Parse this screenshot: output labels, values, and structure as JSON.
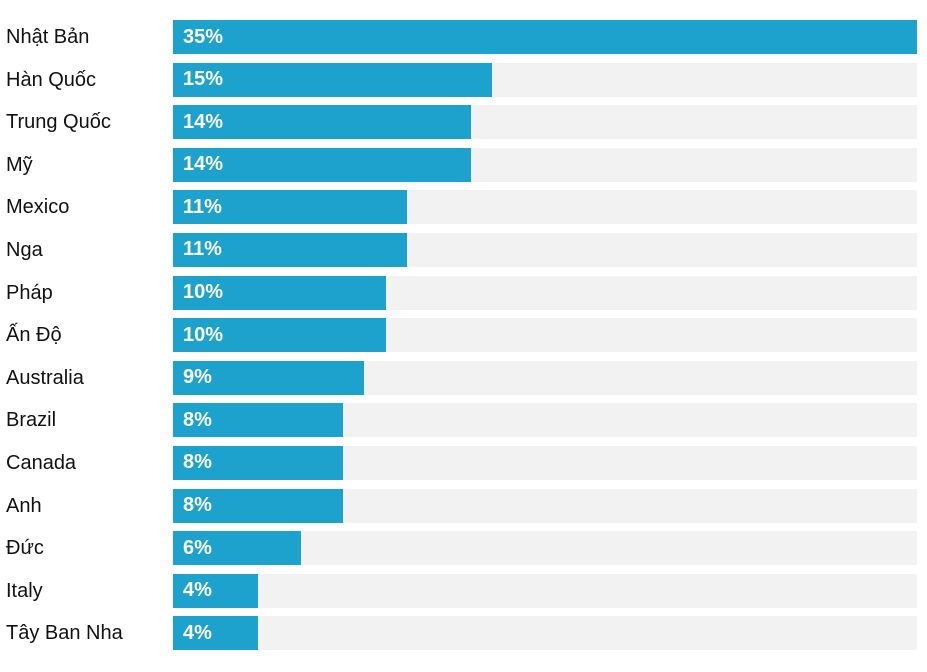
{
  "chart_data": {
    "type": "bar",
    "orientation": "horizontal",
    "title": "",
    "xlabel": "",
    "ylabel": "",
    "xlim": [
      0,
      35
    ],
    "grid": false,
    "legend": false,
    "categories": [
      "Nhật Bản",
      "Hàn Quốc",
      "Trung Quốc",
      "Mỹ",
      "Mexico",
      "Nga",
      "Pháp",
      "Ấn Độ",
      "Australia",
      "Brazil",
      "Canada",
      "Anh",
      "Đức",
      "Italy",
      "Tây Ban Nha"
    ],
    "values": [
      35,
      15,
      14,
      14,
      11,
      11,
      10,
      10,
      9,
      8,
      8,
      8,
      6,
      4,
      4
    ],
    "value_labels": [
      "35%",
      "15%",
      "14%",
      "14%",
      "11%",
      "11%",
      "10%",
      "10%",
      "9%",
      "8%",
      "8%",
      "8%",
      "6%",
      "4%",
      "4%"
    ],
    "bar_color": "#1ca2cd",
    "track_color": "#f2f2f2",
    "label_color": "#111111",
    "value_text_color": "#ffffff"
  }
}
